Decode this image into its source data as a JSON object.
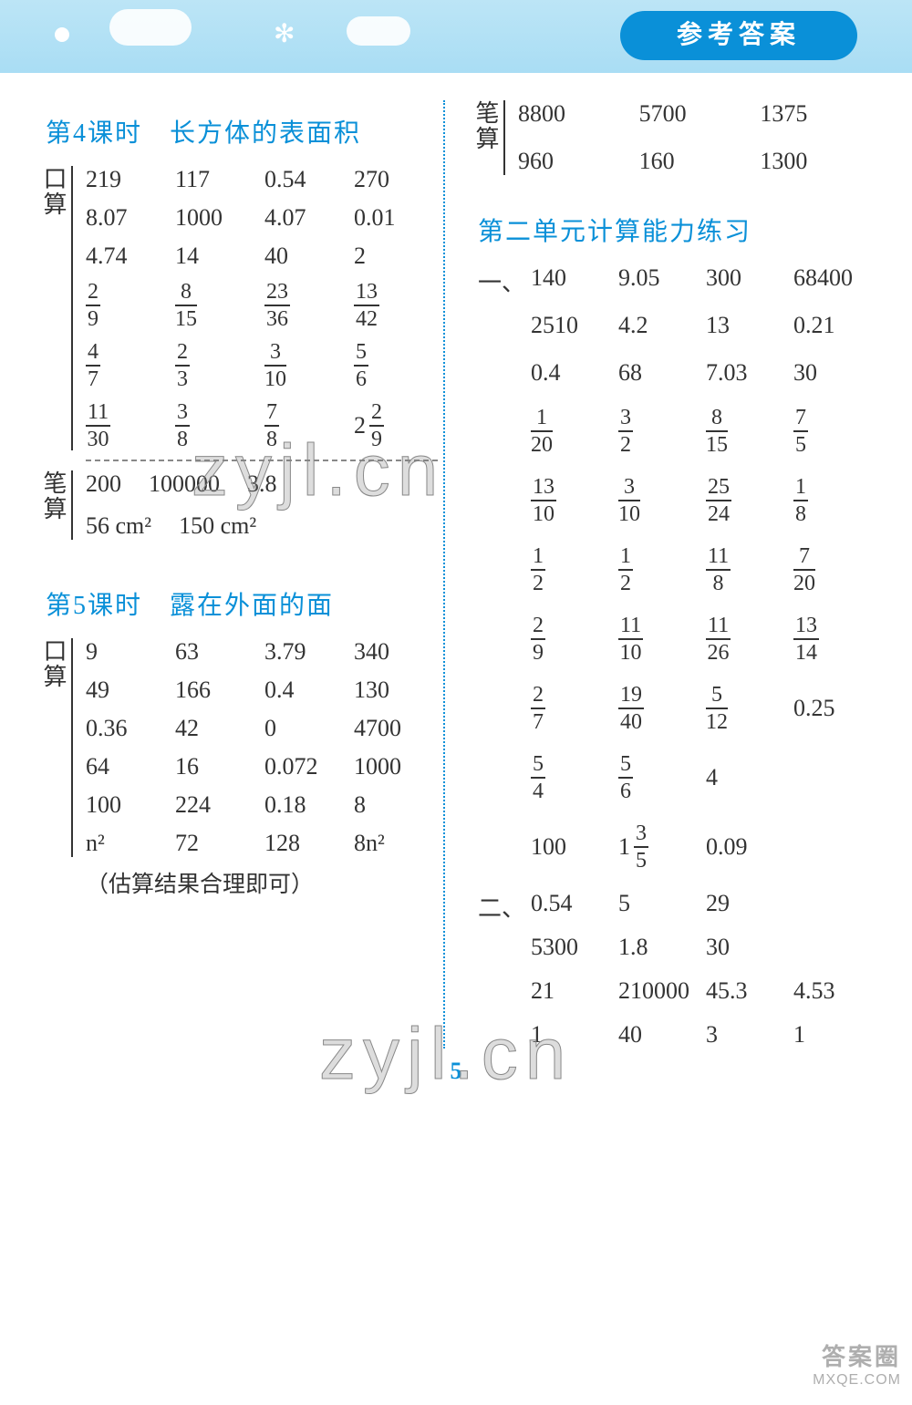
{
  "banner": {
    "badge": "参考答案"
  },
  "watermarks": {
    "wm": "zyjl.cn",
    "corner1": "答案圈",
    "corner2": "MXQE.COM"
  },
  "pageNumber": "5",
  "left": {
    "sec4": {
      "title": "第4课时　长方体的表面积",
      "kousuan_label": "口算",
      "kousuan_rows": [
        [
          "219",
          "117",
          "0.54",
          "270"
        ],
        [
          "8.07",
          "1000",
          "4.07",
          "0.01"
        ],
        [
          "4.74",
          "14",
          "40",
          "2"
        ],
        [
          {
            "f": [
              2,
              9
            ]
          },
          {
            "f": [
              8,
              15
            ]
          },
          {
            "f": [
              23,
              36
            ]
          },
          {
            "f": [
              13,
              42
            ]
          }
        ],
        [
          {
            "f": [
              4,
              7
            ]
          },
          {
            "f": [
              2,
              3
            ]
          },
          {
            "f": [
              3,
              10
            ]
          },
          {
            "f": [
              5,
              6
            ]
          }
        ],
        [
          {
            "f": [
              11,
              30
            ]
          },
          {
            "f": [
              3,
              8
            ]
          },
          {
            "f": [
              7,
              8
            ]
          },
          {
            "m": [
              2,
              2,
              9
            ]
          }
        ]
      ],
      "bisuan_label": "笔算",
      "bisuan_row1": [
        "200",
        "100000",
        "3.8"
      ],
      "bisuan_row2": [
        "56 cm²",
        "150 cm²"
      ]
    },
    "sec5": {
      "title": "第5课时　露在外面的面",
      "kousuan_label": "口算",
      "kousuan_rows": [
        [
          "9",
          "63",
          "3.79",
          "340"
        ],
        [
          "49",
          "166",
          "0.4",
          "130"
        ],
        [
          "0.36",
          "42",
          "0",
          "4700"
        ],
        [
          "64",
          "16",
          "0.072",
          "1000"
        ],
        [
          "100",
          "224",
          "0.18",
          "8"
        ],
        [
          "n²",
          "72",
          "128",
          "8n²"
        ]
      ],
      "note": "（估算结果合理即可）"
    }
  },
  "right": {
    "bisuan_label": "笔算",
    "bisuan_rows": [
      [
        "8800",
        "5700",
        "1375"
      ],
      [
        "960",
        "160",
        "1300"
      ]
    ],
    "unit2": {
      "title": "第二单元计算能力练习",
      "part1_label": "一、",
      "part1_rows": [
        [
          "140",
          "9.05",
          "300",
          "68400"
        ],
        [
          "2510",
          "4.2",
          "13",
          "0.21"
        ],
        [
          "0.4",
          "68",
          "7.03",
          "30"
        ],
        [
          {
            "f": [
              1,
              20
            ]
          },
          {
            "f": [
              3,
              2
            ]
          },
          {
            "f": [
              8,
              15
            ]
          },
          {
            "f": [
              7,
              5
            ]
          }
        ],
        [
          {
            "f": [
              13,
              10
            ]
          },
          {
            "f": [
              3,
              10
            ]
          },
          {
            "f": [
              25,
              24
            ]
          },
          {
            "f": [
              1,
              8
            ]
          }
        ],
        [
          {
            "f": [
              1,
              2
            ]
          },
          {
            "f": [
              1,
              2
            ]
          },
          {
            "f": [
              11,
              8
            ]
          },
          {
            "f": [
              7,
              20
            ]
          }
        ],
        [
          {
            "f": [
              2,
              9
            ]
          },
          {
            "f": [
              11,
              10
            ]
          },
          {
            "f": [
              11,
              26
            ]
          },
          {
            "f": [
              13,
              14
            ]
          }
        ],
        [
          {
            "f": [
              2,
              7
            ]
          },
          {
            "f": [
              19,
              40
            ]
          },
          {
            "f": [
              5,
              12
            ]
          },
          "0.25"
        ],
        [
          {
            "f": [
              5,
              4
            ]
          },
          {
            "f": [
              5,
              6
            ]
          },
          "4",
          ""
        ],
        [
          "100",
          {
            "m": [
              1,
              3,
              5
            ]
          },
          "0.09",
          ""
        ]
      ],
      "part2_label": "二、",
      "part2_rows": [
        [
          "0.54",
          "5",
          "29",
          ""
        ],
        [
          "5300",
          "1.8",
          "30",
          ""
        ],
        [
          "21",
          "210000",
          "45.3",
          "4.53"
        ],
        [
          "1",
          "40",
          "3",
          "1"
        ]
      ]
    }
  }
}
